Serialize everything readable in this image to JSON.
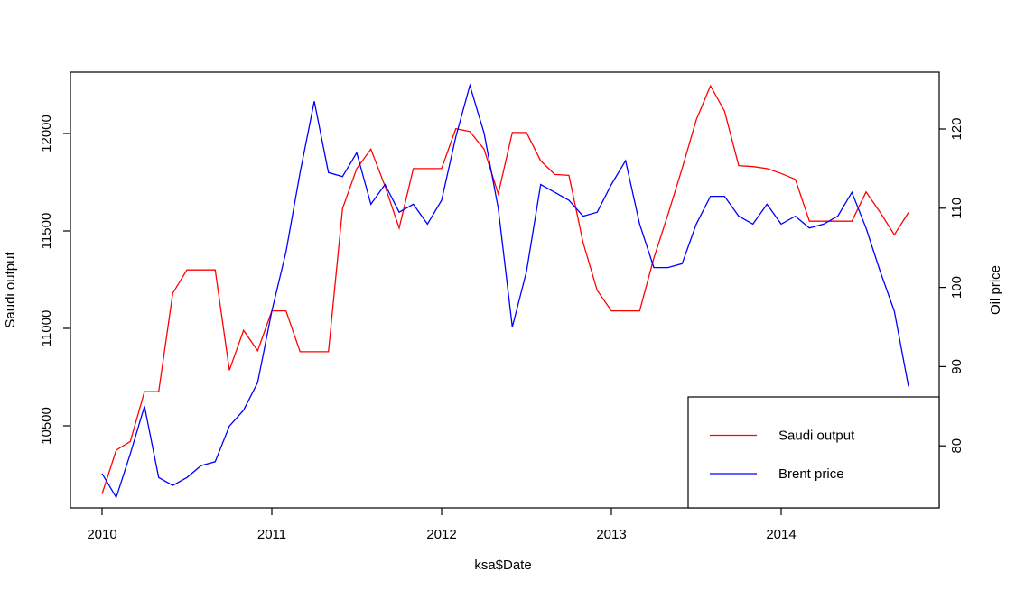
{
  "chart_data": {
    "type": "line",
    "title": "",
    "xlabel": "ksa$Date",
    "ylabel_left": "Saudi output",
    "ylabel_right": "Oil price",
    "grid": false,
    "legend_position": "bottomright",
    "x_ticks": [
      2010,
      2011,
      2012,
      2013,
      2014
    ],
    "y_ticks_left": [
      10500,
      11000,
      11500,
      12000
    ],
    "y_ticks_right": [
      80,
      90,
      100,
      110,
      120
    ],
    "ylim_left": [
      10070,
      12320
    ],
    "ylim_right": [
      72,
      127
    ],
    "x_months": [
      "2010-01",
      "2010-02",
      "2010-03",
      "2010-04",
      "2010-05",
      "2010-06",
      "2010-07",
      "2010-08",
      "2010-09",
      "2010-10",
      "2010-11",
      "2010-12",
      "2011-01",
      "2011-02",
      "2011-03",
      "2011-04",
      "2011-05",
      "2011-06",
      "2011-07",
      "2011-08",
      "2011-09",
      "2011-10",
      "2011-11",
      "2011-12",
      "2012-01",
      "2012-02",
      "2012-03",
      "2012-04",
      "2012-05",
      "2012-06",
      "2012-07",
      "2012-08",
      "2012-09",
      "2012-10",
      "2012-11",
      "2012-12",
      "2013-01",
      "2013-02",
      "2013-03",
      "2013-04",
      "2013-05",
      "2013-06",
      "2013-07",
      "2013-08",
      "2013-09",
      "2013-10",
      "2013-11",
      "2013-12",
      "2014-01",
      "2014-02",
      "2014-03",
      "2014-04",
      "2014-05",
      "2014-06",
      "2014-07",
      "2014-08",
      "2014-09",
      "2014-10"
    ],
    "series": [
      {
        "name": "Saudi output",
        "color": "#ff0000",
        "axis": "left",
        "values": [
          10150,
          10375,
          10420,
          10675,
          10675,
          11180,
          11300,
          11300,
          11300,
          10785,
          10990,
          10885,
          11090,
          11090,
          10880,
          10880,
          10880,
          11615,
          11820,
          11920,
          11730,
          11515,
          11820,
          11820,
          11820,
          12025,
          12010,
          11920,
          11690,
          12005,
          12005,
          11860,
          11790,
          11785,
          11440,
          11195,
          11090,
          11090,
          11090,
          11360,
          11585,
          11820,
          12070,
          12245,
          12115,
          11835,
          11830,
          11820,
          11795,
          11765,
          11550,
          11550,
          11550,
          11550,
          11700,
          11595,
          11480,
          11595
        ]
      },
      {
        "name": "Brent price",
        "color": "#0000ff",
        "axis": "right",
        "values": [
          76.5,
          73.5,
          79,
          85,
          76,
          75,
          76,
          77.5,
          78,
          82.5,
          84.5,
          88,
          97,
          104.5,
          114.5,
          123.5,
          114.5,
          114,
          117,
          110.5,
          113,
          109.5,
          110.5,
          108,
          111,
          119,
          125.5,
          119.5,
          110,
          95,
          102,
          113,
          112,
          111,
          109,
          109.5,
          113,
          116,
          108,
          102.5,
          102.5,
          103,
          108,
          111.5,
          111.5,
          109,
          108,
          110.5,
          108,
          109,
          107.5,
          108,
          109,
          112,
          107.5,
          102,
          97,
          87.5
        ]
      }
    ],
    "legend": {
      "items": [
        {
          "label": "Saudi output",
          "color": "#ff0000"
        },
        {
          "label": "Brent price",
          "color": "#0000ff"
        }
      ]
    }
  }
}
